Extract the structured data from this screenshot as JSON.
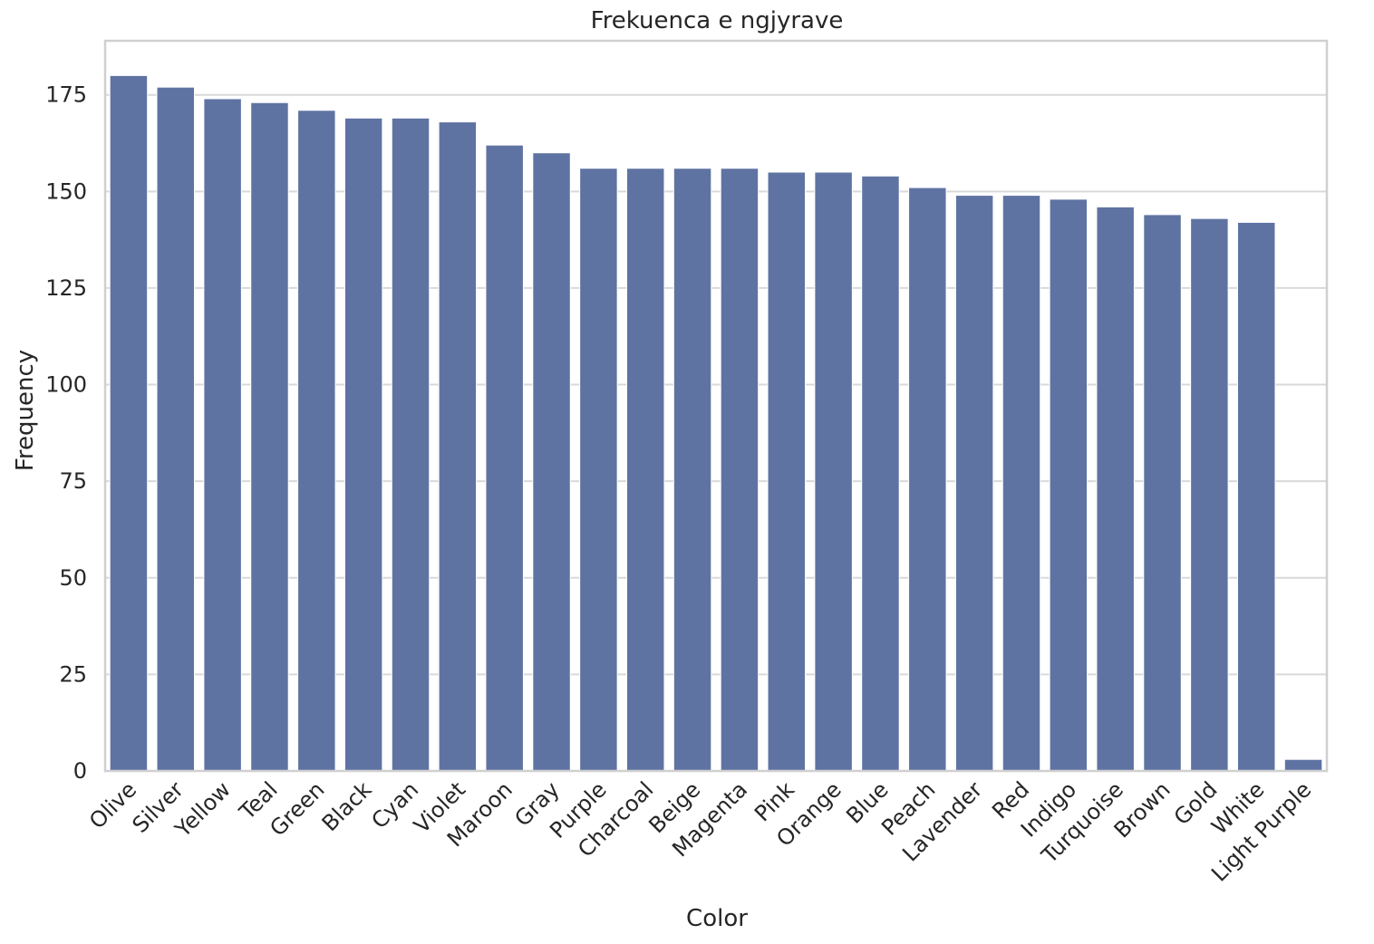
{
  "chart_data": {
    "type": "bar",
    "title": "Frekuenca e ngjyrave",
    "xlabel": "Color",
    "ylabel": "Frequency",
    "categories": [
      "Olive",
      "Silver",
      "Yellow",
      "Teal",
      "Green",
      "Black",
      "Cyan",
      "Violet",
      "Maroon",
      "Gray",
      "Purple",
      "Charcoal",
      "Beige",
      "Magenta",
      "Pink",
      "Orange",
      "Blue",
      "Peach",
      "Lavender",
      "Red",
      "Indigo",
      "Turquoise",
      "Brown",
      "Gold",
      "White",
      "Light Purple"
    ],
    "values": [
      180,
      177,
      174,
      173,
      171,
      169,
      169,
      168,
      162,
      160,
      156,
      156,
      156,
      156,
      155,
      155,
      154,
      151,
      149,
      149,
      148,
      146,
      144,
      143,
      142,
      3
    ],
    "ylim": [
      0,
      189
    ],
    "yticks": [
      0,
      25,
      50,
      75,
      100,
      125,
      150,
      175
    ],
    "grid": true,
    "bar_color": "#5f73a3"
  }
}
